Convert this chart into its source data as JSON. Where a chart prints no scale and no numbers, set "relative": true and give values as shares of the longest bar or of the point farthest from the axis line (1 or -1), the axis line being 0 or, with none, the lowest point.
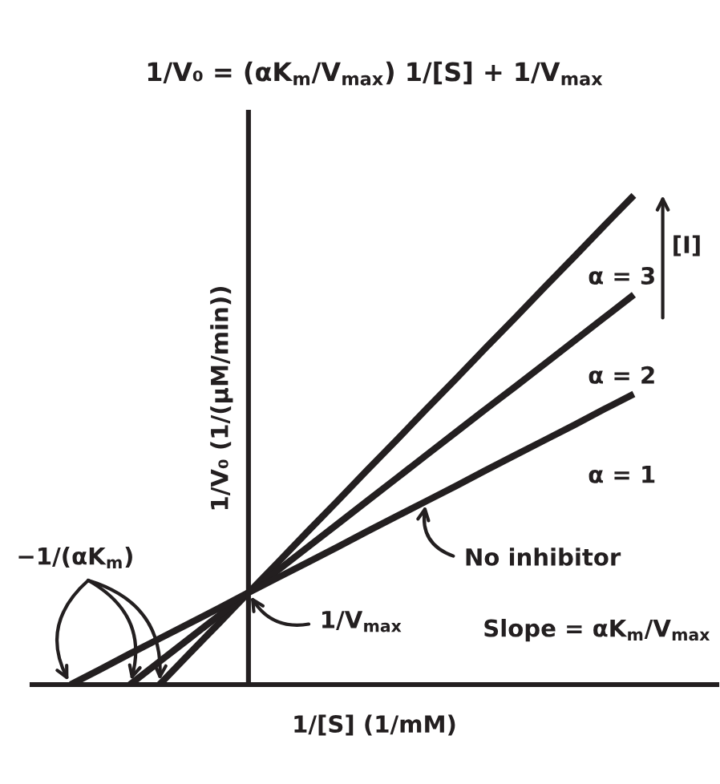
{
  "chart_data": {
    "type": "line",
    "relative": true,
    "title": "1/V₀ = (αK$_{m}$/V$_{max}$) 1/[S] + 1/V$_{max}$",
    "xlabel": "1/[S] (1/mM)",
    "ylabel": "1/V₀ (1/(μM/min))",
    "line_style": "solid",
    "categories": [
      null,
      null,
      null,
      null,
      null,
      null,
      null,
      null,
      null,
      null,
      null,
      null,
      null,
      null,
      null,
      null,
      null,
      null,
      null,
      null
    ],
    "series": [
      {
        "name": "α = 3",
        "color": "#231f20",
        "values": [
          null,
          null,
          null,
          0,
          0.063,
          0.125,
          0.188,
          0.25,
          0.313,
          0.375,
          0.438,
          0.5,
          0.563,
          0.625,
          0.688,
          0.75,
          0.813,
          0.875,
          0.938,
          1
        ]
      },
      {
        "name": "α = 2",
        "color": "#231f20",
        "values": [
          null,
          null,
          0,
          0.047,
          0.094,
          0.141,
          0.188,
          0.234,
          0.281,
          0.328,
          0.375,
          0.422,
          0.469,
          0.516,
          0.563,
          0.609,
          0.656,
          0.703,
          0.75,
          0.797
        ]
      },
      {
        "name": "α = 1",
        "color": "#231f20",
        "values": [
          0,
          0.031,
          0.063,
          0.094,
          0.125,
          0.156,
          0.188,
          0.219,
          0.25,
          0.281,
          0.313,
          0.344,
          0.375,
          0.406,
          0.438,
          0.469,
          0.5,
          0.531,
          0.563,
          0.594
        ]
      }
    ],
    "annotations": [
      "[I]",
      "No inhibitor",
      "−1/(αK$_{m}$)",
      "1/V$_{max}$",
      "Slope = αK$_{m}$/V$_{max}$"
    ]
  }
}
